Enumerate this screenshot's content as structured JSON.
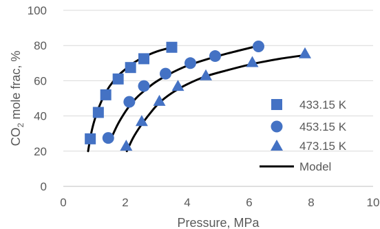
{
  "chart_data": {
    "type": "scatter",
    "title": "",
    "xlabel": "Pressure, MPa",
    "ylabel": {
      "prefix": "CO",
      "subscript": "2",
      "suffix": " mole frac, %"
    },
    "xlim": [
      0,
      10
    ],
    "ylim": [
      0,
      100
    ],
    "xticks": [
      0,
      2,
      4,
      6,
      8,
      10
    ],
    "yticks": [
      0,
      20,
      40,
      60,
      80,
      100
    ],
    "grid": "horizontal",
    "legend_position": "bottom-right",
    "series": [
      {
        "name": "433.15 K",
        "marker": "square",
        "color": "#4472C4",
        "x": [
          0.87,
          1.13,
          1.37,
          1.77,
          2.17,
          2.6,
          3.5
        ],
        "y": [
          27,
          42,
          52,
          61,
          67.5,
          72.5,
          79
        ]
      },
      {
        "name": "453.15 K",
        "marker": "circle",
        "color": "#4472C4",
        "x": [
          1.45,
          2.13,
          2.6,
          3.3,
          4.1,
          4.9,
          6.3
        ],
        "y": [
          27.5,
          48,
          57,
          64,
          70,
          74,
          79.5
        ]
      },
      {
        "name": "473.15 K",
        "marker": "triangle",
        "color": "#4472C4",
        "x": [
          2.03,
          2.53,
          3.1,
          3.7,
          4.6,
          6.1,
          7.8
        ],
        "y": [
          23,
          37,
          48.5,
          57,
          63,
          70.5,
          75.5
        ]
      }
    ],
    "model": {
      "name": "Model",
      "color": "#000000",
      "curves": [
        {
          "x": [
            0.8,
            0.87,
            0.95,
            1.05,
            1.15,
            1.3,
            1.5,
            1.75,
            2.0,
            2.3,
            2.6,
            3.0,
            3.5
          ],
          "y": [
            20,
            27.5,
            34,
            40,
            45,
            51,
            57,
            62.5,
            66.5,
            70.5,
            73.5,
            76.5,
            79
          ]
        },
        {
          "x": [
            1.55,
            1.75,
            1.95,
            2.15,
            2.4,
            2.7,
            3.0,
            3.5,
            4.0,
            4.6,
            5.3,
            6.1
          ],
          "y": [
            27.5,
            35,
            41,
            46,
            51,
            55.5,
            59.5,
            64.5,
            68.5,
            72,
            75.5,
            79
          ]
        },
        {
          "x": [
            2.05,
            2.25,
            2.5,
            2.8,
            3.1,
            3.5,
            4.0,
            4.6,
            5.3,
            6.1,
            7.0,
            7.8
          ],
          "y": [
            20,
            27.5,
            34.5,
            41.5,
            47.5,
            53,
            58,
            62.5,
            66,
            69.5,
            72.5,
            74.5
          ]
        }
      ]
    }
  }
}
